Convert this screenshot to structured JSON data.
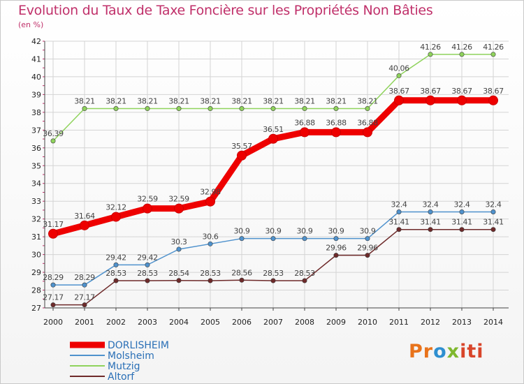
{
  "chart_data": {
    "type": "line",
    "title": "Evolution du Taux de Taxe Foncière sur les Propriétés Non Bâties",
    "ylabel": "(en %)",
    "xlabel": "",
    "ylim": [
      27,
      42
    ],
    "yticks": [
      27,
      28,
      29,
      30,
      31,
      32,
      33,
      34,
      35,
      36,
      37,
      38,
      39,
      40,
      41,
      42
    ],
    "grid": true,
    "legend": "bottom-left",
    "x": [
      "2000",
      "2001",
      "2002",
      "2003",
      "2004",
      "2005",
      "2006",
      "2007",
      "2008",
      "2009",
      "2010",
      "2011",
      "2012",
      "2013",
      "2014"
    ],
    "series": [
      {
        "name": "DORLISHEIM",
        "color": "#ee0000",
        "emphasis": true,
        "values": [
          31.17,
          31.64,
          32.12,
          32.59,
          32.59,
          32.98,
          35.57,
          36.51,
          36.88,
          36.88,
          36.88,
          38.67,
          38.67,
          38.67,
          38.67
        ],
        "labels": [
          "31.17",
          "31.64",
          "32.12",
          "32.59",
          "32.59",
          "32.98",
          "35.57",
          "36.51",
          "36.88",
          "36.88",
          "36.88",
          "38.67",
          "38.67",
          "38.67",
          "38.67"
        ]
      },
      {
        "name": "Molsheim",
        "color": "#4f92cd",
        "emphasis": false,
        "values": [
          28.29,
          28.29,
          29.42,
          29.42,
          30.3,
          30.6,
          30.9,
          30.9,
          30.9,
          30.9,
          30.9,
          32.4,
          32.4,
          32.4,
          32.4
        ],
        "labels": [
          "28.29",
          "28.29",
          "29.42",
          "29.42",
          "30.3",
          "30.6",
          "30.9",
          "30.9",
          "30.9",
          "30.9",
          "30.9",
          "32.4",
          "32.4",
          "32.4",
          "32.4"
        ]
      },
      {
        "name": "Mutzig",
        "color": "#8fd35c",
        "emphasis": false,
        "values": [
          36.39,
          38.21,
          38.21,
          38.21,
          38.21,
          38.21,
          38.21,
          38.21,
          38.21,
          38.21,
          38.21,
          40.06,
          41.26,
          41.26,
          41.26
        ],
        "labels": [
          "36.39",
          "38.21",
          "38.21",
          "38.21",
          "38.21",
          "38.21",
          "38.21",
          "38.21",
          "38.21",
          "38.21",
          "38.21",
          "40.06",
          "41.26",
          "41.26",
          "41.26"
        ]
      },
      {
        "name": "Altorf",
        "color": "#6e2a2a",
        "emphasis": false,
        "values": [
          27.17,
          27.17,
          28.53,
          28.53,
          28.54,
          28.53,
          28.56,
          28.53,
          28.53,
          29.96,
          29.96,
          31.41,
          31.41,
          31.41,
          31.41
        ],
        "labels": [
          "27.17",
          "27.17",
          "28.53",
          "28.53",
          "28.54",
          "28.53",
          "28.56",
          "28.53",
          "28.53",
          "29.96",
          "29.96",
          "31.41",
          "31.41",
          "31.41",
          "31.41"
        ]
      }
    ]
  },
  "logo": {
    "p1": "Pr",
    "p2": "o",
    "p3": "x",
    "p4": "iti"
  }
}
